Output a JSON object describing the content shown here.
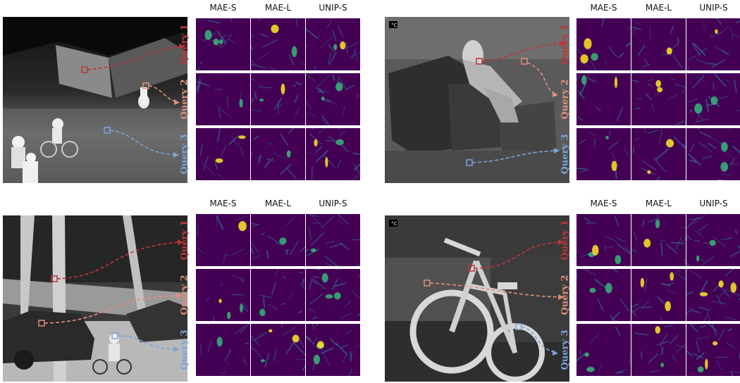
{
  "figure": {
    "columns": [
      "MAE-S",
      "MAE-L",
      "UNIP-S"
    ],
    "queries": [
      "Query 1",
      "Query 2",
      "Query 3"
    ],
    "query_colors": [
      "#c0343a",
      "#e0907a",
      "#7aa4dc"
    ],
    "panels": [
      {
        "id": "top-left",
        "scene": "night street with cyclists",
        "temp_icon": ""
      },
      {
        "id": "top-right",
        "scene": "person sitting on chair indoors",
        "temp_icon": "°C"
      },
      {
        "id": "bottom-left",
        "scene": "trees, car and cyclist",
        "temp_icon": ""
      },
      {
        "id": "bottom-right",
        "scene": "parked bicycle",
        "temp_icon": "°C"
      }
    ],
    "colormap": {
      "low": "#440154",
      "mid": "#31688e",
      "high": "#fde725",
      "green": "#35b779"
    }
  }
}
